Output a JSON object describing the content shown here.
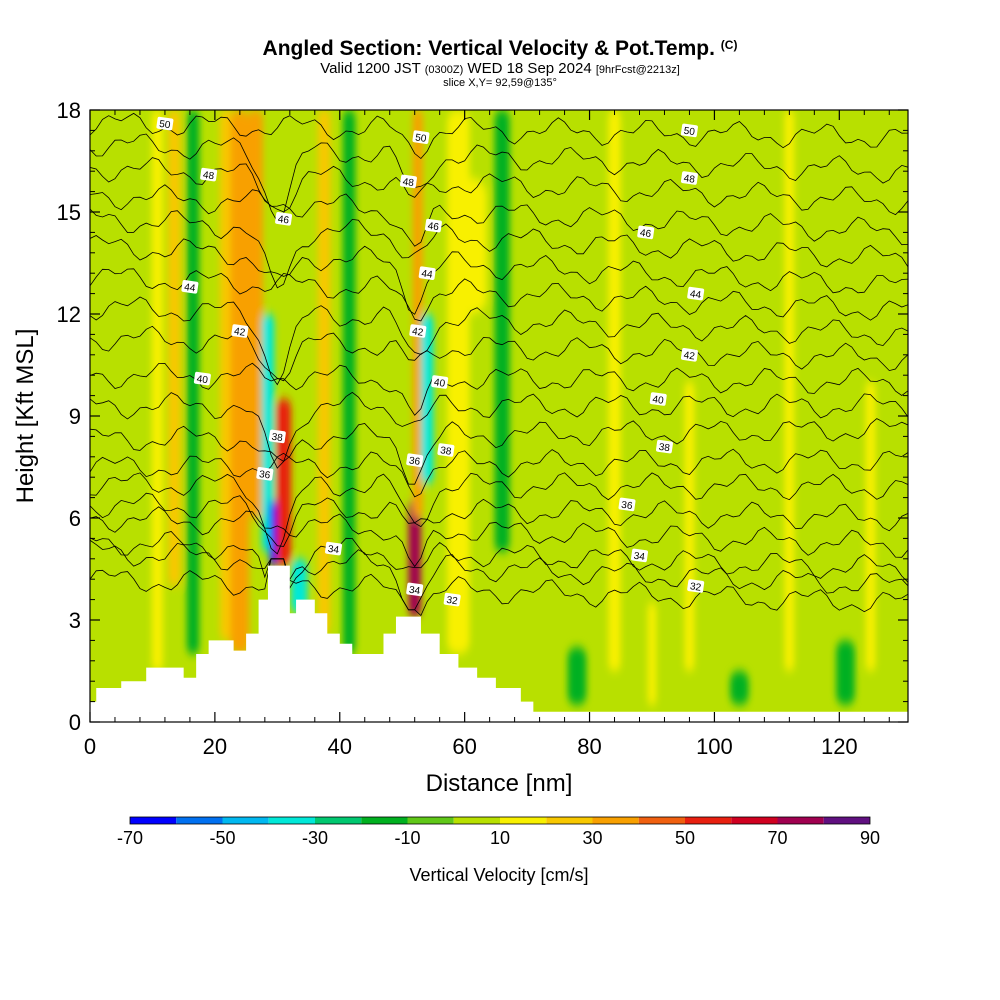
{
  "header": {
    "title": "Angled Section: Vertical Velocity & Pot.Temp.",
    "title_unit": "(C)",
    "valid_prefix": "Valid 1200 JST",
    "valid_zulu": "(0300Z)",
    "valid_date": "WED 18 Sep 2024",
    "forecast": "[9hrFcst@2213z]",
    "slice": "slice X,Y= 92,59@135°"
  },
  "colors": {
    "terrain": "#ffffff",
    "contour": "#000000",
    "frame": "#000000",
    "scale": [
      "#0000ff",
      "#0070f0",
      "#00b8f0",
      "#00e8d8",
      "#00c870",
      "#00b020",
      "#60c818",
      "#b8e000",
      "#f8f000",
      "#f8c800",
      "#f8a000",
      "#f06010",
      "#e82010",
      "#d00020",
      "#a00050",
      "#601080"
    ]
  },
  "chart_data": {
    "type": "heatmap",
    "xlabel": "Distance [nm]",
    "ylabel": "Height [Kft MSL]",
    "xlim": [
      0,
      131
    ],
    "ylim": [
      0,
      18
    ],
    "xticks": [
      0,
      20,
      40,
      60,
      80,
      100,
      120
    ],
    "yticks": [
      0,
      3,
      6,
      9,
      12,
      15,
      18
    ],
    "colorbar": {
      "label": "Vertical Velocity [cm/s]",
      "bounds": [
        -70,
        -60,
        -50,
        -40,
        -30,
        -20,
        -10,
        0,
        10,
        20,
        30,
        40,
        50,
        60,
        70,
        80,
        90
      ],
      "tick_labels": [
        "-70",
        "-50",
        "-30",
        "-10",
        "10",
        "30",
        "50",
        "70",
        "90"
      ]
    },
    "terrain_profile": [
      [
        0,
        0.6
      ],
      [
        1,
        1.0
      ],
      [
        5,
        1.2
      ],
      [
        9,
        1.6
      ],
      [
        13,
        1.6
      ],
      [
        15,
        1.3
      ],
      [
        17,
        2.0
      ],
      [
        19,
        2.4
      ],
      [
        23,
        2.1
      ],
      [
        25,
        2.6
      ],
      [
        27,
        3.6
      ],
      [
        28.5,
        4.6
      ],
      [
        31,
        4.6
      ],
      [
        32,
        3.2
      ],
      [
        33,
        3.6
      ],
      [
        36,
        3.2
      ],
      [
        38,
        2.6
      ],
      [
        40,
        2.3
      ],
      [
        42,
        2.0
      ],
      [
        45,
        2.0
      ],
      [
        47,
        2.6
      ],
      [
        49,
        3.1
      ],
      [
        51,
        3.1
      ],
      [
        53,
        2.6
      ],
      [
        56,
        2.0
      ],
      [
        59,
        1.6
      ],
      [
        62,
        1.3
      ],
      [
        65,
        1.0
      ],
      [
        69,
        0.6
      ],
      [
        71,
        0.3
      ],
      [
        131,
        0.3
      ]
    ],
    "velocity_features": [
      {
        "x": 10.8,
        "y0": 1.5,
        "y1": 18,
        "w": 0.9,
        "v": 15
      },
      {
        "x": 13.5,
        "y0": 4,
        "y1": 18,
        "w": 1.0,
        "v": 25
      },
      {
        "x": 16.5,
        "y0": 2,
        "y1": 18,
        "w": 1.0,
        "v": -12
      },
      {
        "x": 22,
        "y0": 2.4,
        "y1": 18,
        "w": 1.2,
        "v": 20
      },
      {
        "x": 24,
        "y0": 2,
        "y1": 18,
        "w": 1.5,
        "v": 32
      },
      {
        "x": 26.5,
        "y0": 6,
        "y1": 18,
        "w": 1.2,
        "v": 35
      },
      {
        "x": 28.5,
        "y0": 5,
        "y1": 12,
        "w": 1.0,
        "v": -35
      },
      {
        "x": 29.5,
        "y0": 4.6,
        "y1": 6.5,
        "w": 0.8,
        "v": -65
      },
      {
        "x": 31,
        "y0": 4.6,
        "y1": 9.5,
        "w": 1.2,
        "v": 58
      },
      {
        "x": 33.5,
        "y0": 3.2,
        "y1": 4.8,
        "w": 1.3,
        "v": -40
      },
      {
        "x": 37.5,
        "y0": 2.6,
        "y1": 18,
        "w": 1.0,
        "v": 25
      },
      {
        "x": 41.5,
        "y0": 2.0,
        "y1": 18,
        "w": 1.0,
        "v": -12
      },
      {
        "x": 52,
        "y0": 3.1,
        "y1": 6.5,
        "w": 1.0,
        "v": 75
      },
      {
        "x": 52.5,
        "y0": 6,
        "y1": 18,
        "w": 0.8,
        "v": 35
      },
      {
        "x": 54,
        "y0": 7,
        "y1": 12,
        "w": 1.0,
        "v": -35
      },
      {
        "x": 59,
        "y0": 2,
        "y1": 18,
        "w": 1.8,
        "v": 15
      },
      {
        "x": 61,
        "y0": 12,
        "y1": 16,
        "w": 2.5,
        "v": 18
      },
      {
        "x": 66,
        "y0": 5,
        "y1": 18,
        "w": 1.2,
        "v": -12
      },
      {
        "x": 78,
        "y0": 0.5,
        "y1": 2.2,
        "w": 1.5,
        "v": -15
      },
      {
        "x": 84,
        "y0": 1.5,
        "y1": 18,
        "w": 1.0,
        "v": 15
      },
      {
        "x": 90,
        "y0": 0.5,
        "y1": 3.5,
        "w": 0.7,
        "v": 15
      },
      {
        "x": 96,
        "y0": 1.5,
        "y1": 10,
        "w": 0.8,
        "v": 12
      },
      {
        "x": 104,
        "y0": 0.5,
        "y1": 1.5,
        "w": 1.5,
        "v": -15
      },
      {
        "x": 112,
        "y0": 1.5,
        "y1": 18,
        "w": 0.8,
        "v": 15
      },
      {
        "x": 121,
        "y0": 0.5,
        "y1": 2.4,
        "w": 1.5,
        "v": -15
      },
      {
        "x": 125,
        "y0": 1.5,
        "y1": 10,
        "w": 0.8,
        "v": 12
      }
    ],
    "potential_temperature": {
      "levels": [
        32,
        33,
        34,
        35,
        36,
        37,
        38,
        39,
        40,
        41,
        42,
        43,
        44,
        45,
        46,
        47,
        48,
        49,
        50
      ],
      "base_height_left": [
        4.2,
        5.0,
        5.3,
        6.0,
        6.4,
        7.0,
        7.5,
        8.3,
        9.3,
        10.2,
        11.3,
        12.2,
        13.1,
        14.0,
        14.8,
        15.5,
        16.3,
        17.0,
        17.6
      ],
      "base_height_right": [
        3.5,
        4.0,
        4.5,
        5.2,
        6.0,
        6.9,
        7.7,
        8.6,
        9.3,
        10.0,
        10.7,
        11.4,
        12.1,
        12.8,
        13.6,
        14.4,
        15.3,
        16.2,
        17.2
      ],
      "labels": [
        {
          "text": "50",
          "x": 12,
          "y": 17.6
        },
        {
          "text": "48",
          "x": 19,
          "y": 16.1
        },
        {
          "text": "46",
          "x": 31,
          "y": 14.8
        },
        {
          "text": "44",
          "x": 16,
          "y": 12.8
        },
        {
          "text": "42",
          "x": 24,
          "y": 11.5
        },
        {
          "text": "40",
          "x": 18,
          "y": 10.1
        },
        {
          "text": "38",
          "x": 30,
          "y": 8.4
        },
        {
          "text": "36",
          "x": 28,
          "y": 7.3
        },
        {
          "text": "34",
          "x": 39,
          "y": 5.1
        },
        {
          "text": "50",
          "x": 53,
          "y": 17.2
        },
        {
          "text": "48",
          "x": 51,
          "y": 15.9
        },
        {
          "text": "46",
          "x": 55,
          "y": 14.6
        },
        {
          "text": "44",
          "x": 54,
          "y": 13.2
        },
        {
          "text": "42",
          "x": 52.5,
          "y": 11.5
        },
        {
          "text": "40",
          "x": 56,
          "y": 10.0
        },
        {
          "text": "38",
          "x": 57,
          "y": 8.0
        },
        {
          "text": "36",
          "x": 52,
          "y": 7.7
        },
        {
          "text": "34",
          "x": 52,
          "y": 3.9
        },
        {
          "text": "32",
          "x": 58,
          "y": 3.6
        },
        {
          "text": "50",
          "x": 96,
          "y": 17.4
        },
        {
          "text": "48",
          "x": 96,
          "y": 16.0
        },
        {
          "text": "46",
          "x": 89,
          "y": 14.4
        },
        {
          "text": "44",
          "x": 97,
          "y": 12.6
        },
        {
          "text": "42",
          "x": 96,
          "y": 10.8
        },
        {
          "text": "40",
          "x": 91,
          "y": 9.5
        },
        {
          "text": "38",
          "x": 92,
          "y": 8.1
        },
        {
          "text": "36",
          "x": 86,
          "y": 6.4
        },
        {
          "text": "34",
          "x": 88,
          "y": 4.9
        },
        {
          "text": "32",
          "x": 97,
          "y": 4.0
        }
      ]
    }
  }
}
